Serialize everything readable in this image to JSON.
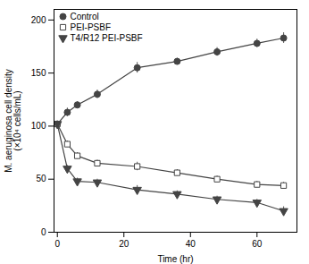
{
  "chart_data": {
    "type": "line",
    "xlabel": "Time (hr)",
    "ylabel": "M. aeruginosa cell density\n(×10⁴ cells/mL)",
    "x": [
      0,
      3,
      6,
      12,
      24,
      36,
      48,
      60,
      68
    ],
    "series": [
      {
        "name": "Control",
        "color": "#444444",
        "marker": "circle",
        "values": [
          102,
          113,
          120,
          130,
          155,
          161,
          170,
          178,
          183
        ],
        "errors": [
          2,
          4,
          3,
          4,
          5,
          3,
          4,
          4,
          5
        ]
      },
      {
        "name": "PEI-PSBF",
        "color": "#444444",
        "marker": "square_open",
        "values": [
          102,
          83,
          72,
          65,
          62,
          56,
          50,
          45,
          44
        ],
        "errors": [
          2,
          3,
          3,
          3,
          4,
          3,
          3,
          3,
          3
        ]
      },
      {
        "name": "T4/R12 PEI-PSBF",
        "color": "#444444",
        "marker": "triangle_down",
        "values": [
          102,
          60,
          48,
          47,
          40,
          36,
          31,
          28,
          20
        ],
        "errors": [
          2,
          3,
          3,
          3,
          4,
          3,
          3,
          3,
          4
        ]
      }
    ],
    "xlim": [
      -1,
      72
    ],
    "ylim": [
      0,
      210
    ],
    "xticks": [
      0,
      20,
      40,
      60
    ],
    "yticks": [
      0,
      50,
      100,
      150,
      200
    ],
    "legend": "upper left",
    "grid": false
  }
}
